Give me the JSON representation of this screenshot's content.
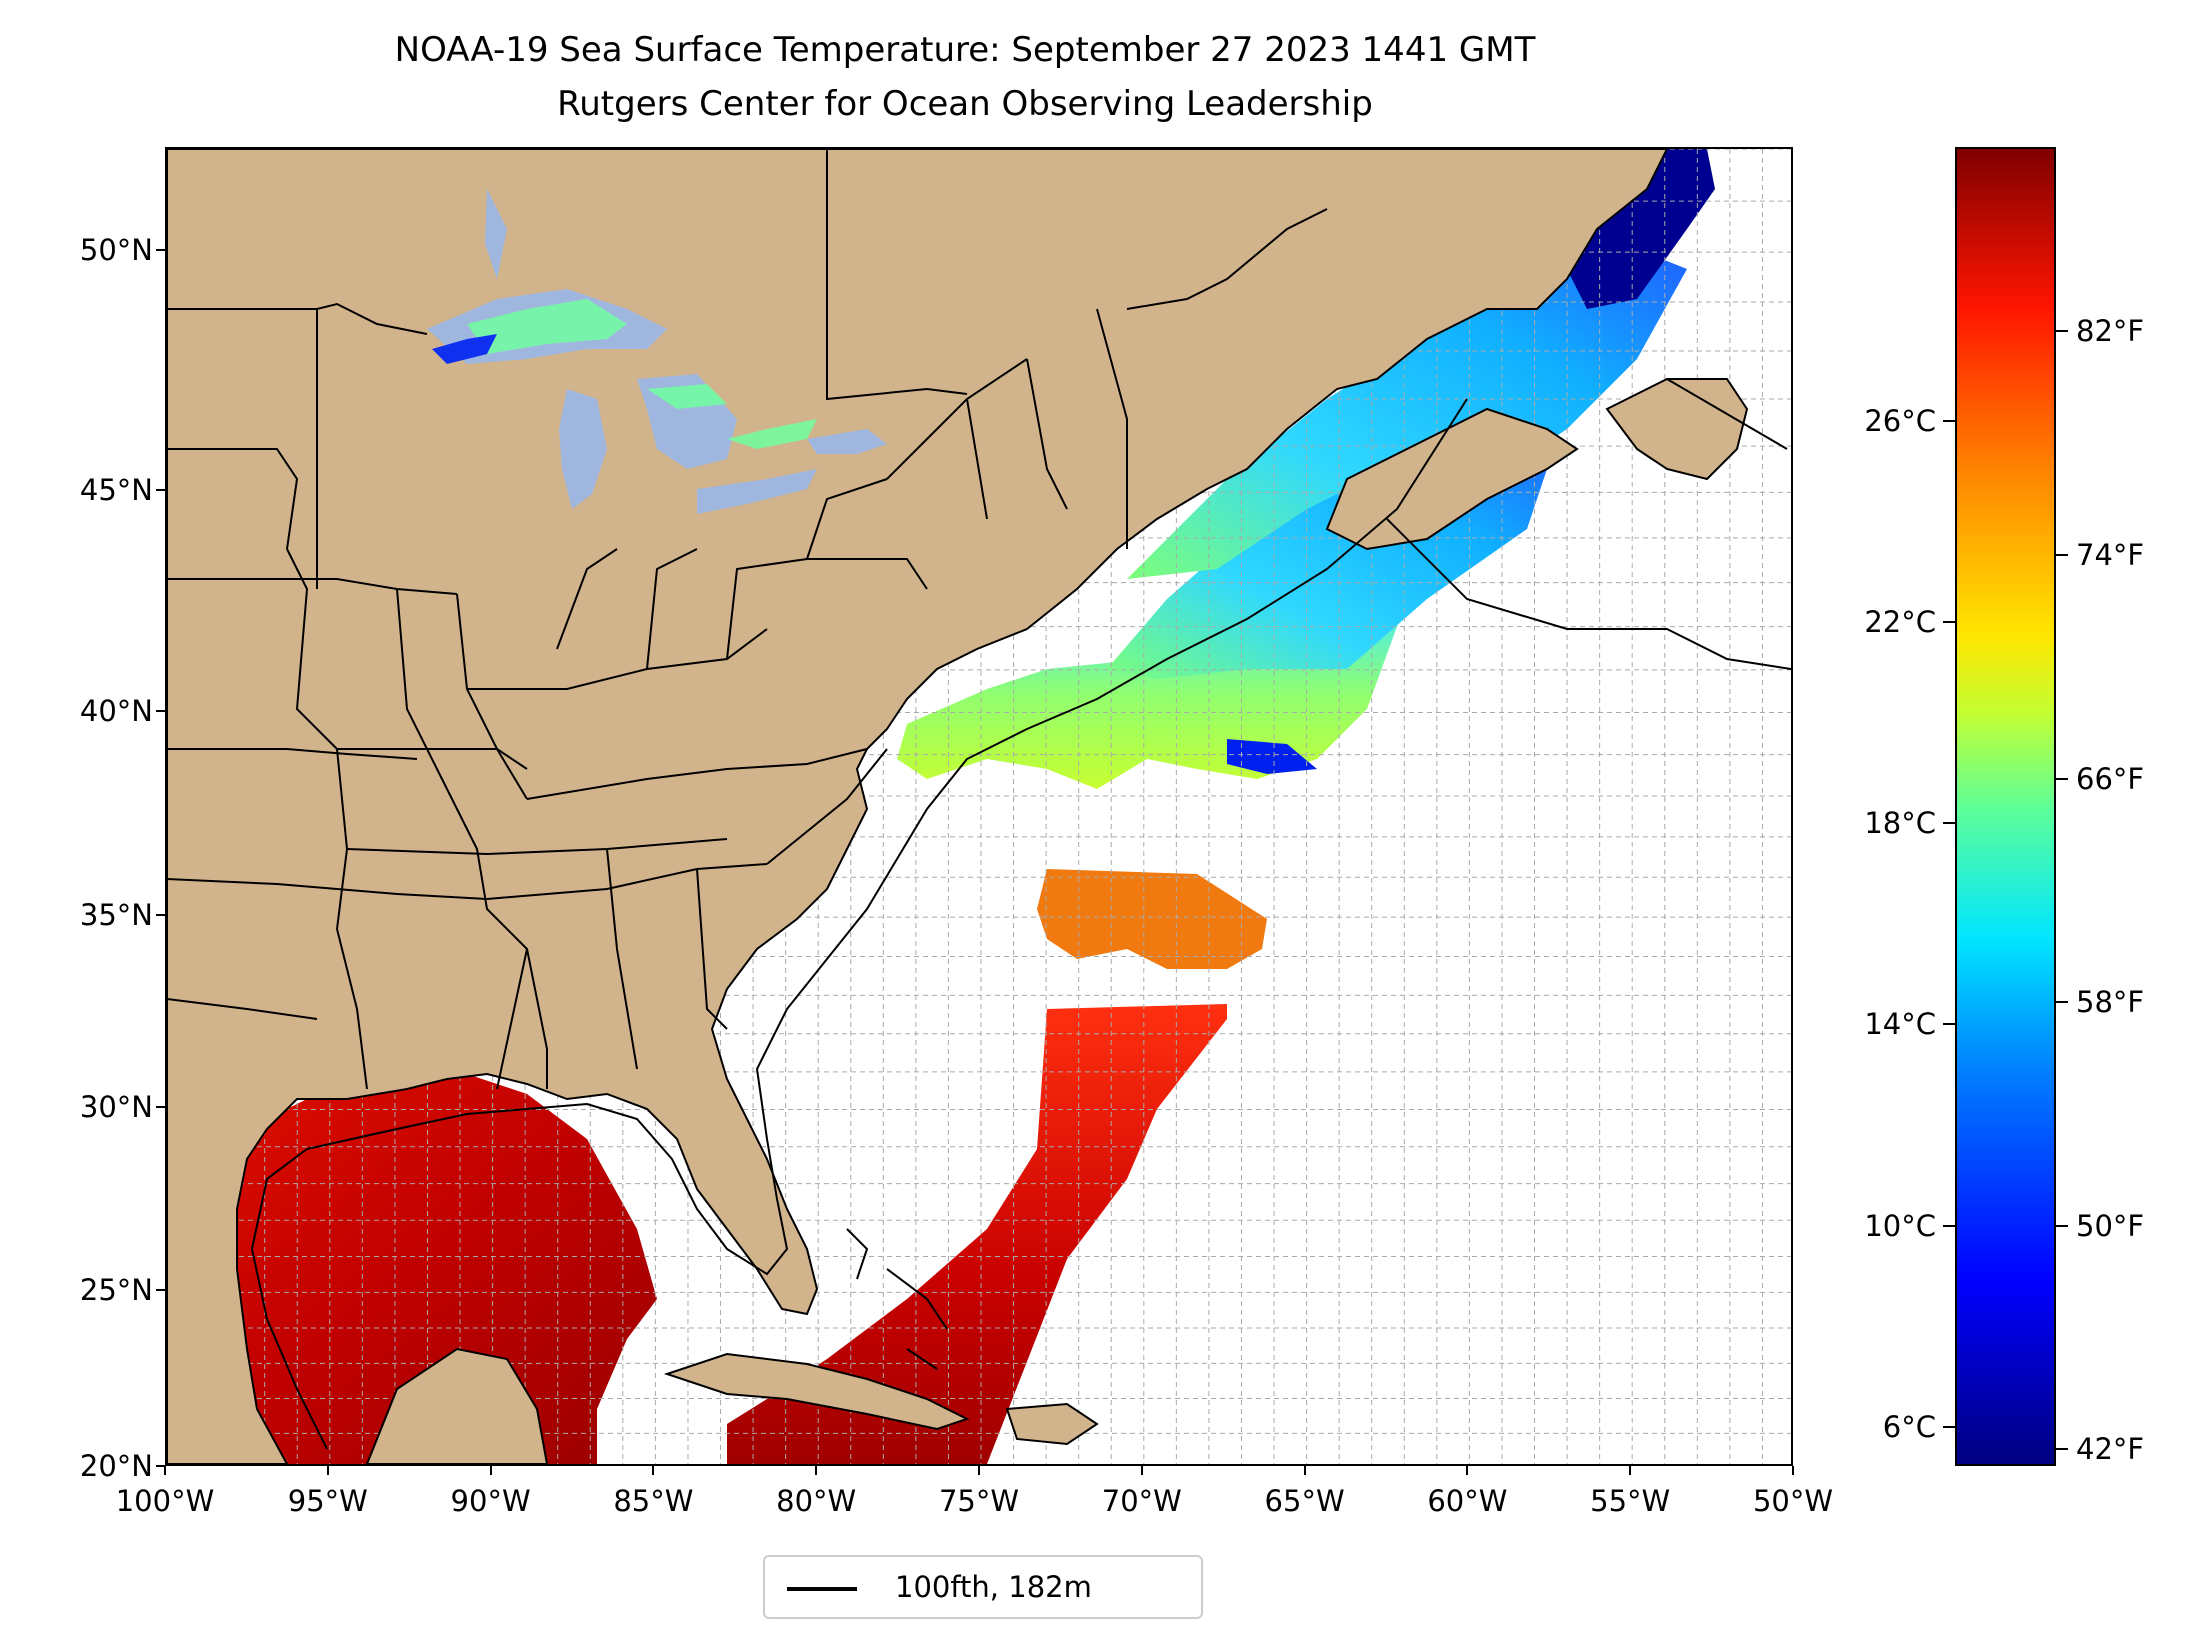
{
  "title": {
    "line1": "NOAA-19 Sea Surface Temperature: September 27 2023 1441 GMT",
    "line2": "Rutgers Center for Ocean Observing Leadership"
  },
  "map": {
    "lon_range": [
      -100,
      -50
    ],
    "lat_range": [
      20,
      52
    ],
    "grid": true,
    "lat_ticks": [
      {
        "value": 50,
        "label": "50°N"
      },
      {
        "value": 45,
        "label": "45°N"
      },
      {
        "value": 40,
        "label": "40°N"
      },
      {
        "value": 35,
        "label": "35°N"
      },
      {
        "value": 30,
        "label": "30°N"
      },
      {
        "value": 25,
        "label": "25°N"
      },
      {
        "value": 20,
        "label": "20°N"
      }
    ],
    "lon_ticks": [
      {
        "value": -100,
        "label": "100°W"
      },
      {
        "value": -95,
        "label": "95°W"
      },
      {
        "value": -90,
        "label": "90°W"
      },
      {
        "value": -85,
        "label": "85°W"
      },
      {
        "value": -80,
        "label": "80°W"
      },
      {
        "value": -75,
        "label": "75°W"
      },
      {
        "value": -70,
        "label": "70°W"
      },
      {
        "value": -65,
        "label": "65°W"
      },
      {
        "value": -60,
        "label": "60°W"
      },
      {
        "value": -55,
        "label": "55°W"
      },
      {
        "value": -50,
        "label": "50°W"
      }
    ],
    "colors": {
      "land": "#d2b48c",
      "lakes": "#9fb6de",
      "border": "#000000"
    }
  },
  "legend": {
    "label": "100fth, 182m"
  },
  "colorbar": {
    "colormap": "jet",
    "celsius_ticks": [
      {
        "value": 26,
        "label": "26°C"
      },
      {
        "value": 22,
        "label": "22°C"
      },
      {
        "value": 18,
        "label": "18°C"
      },
      {
        "value": 14,
        "label": "14°C"
      },
      {
        "value": 10,
        "label": "10°C"
      },
      {
        "value": 6,
        "label": "6°C"
      }
    ],
    "fahrenheit_ticks": [
      {
        "value": 82,
        "label": "82°F"
      },
      {
        "value": 74,
        "label": "74°F"
      },
      {
        "value": 66,
        "label": "66°F"
      },
      {
        "value": 58,
        "label": "58°F"
      },
      {
        "value": 50,
        "label": "50°F"
      },
      {
        "value": 42,
        "label": "42°F"
      }
    ]
  }
}
